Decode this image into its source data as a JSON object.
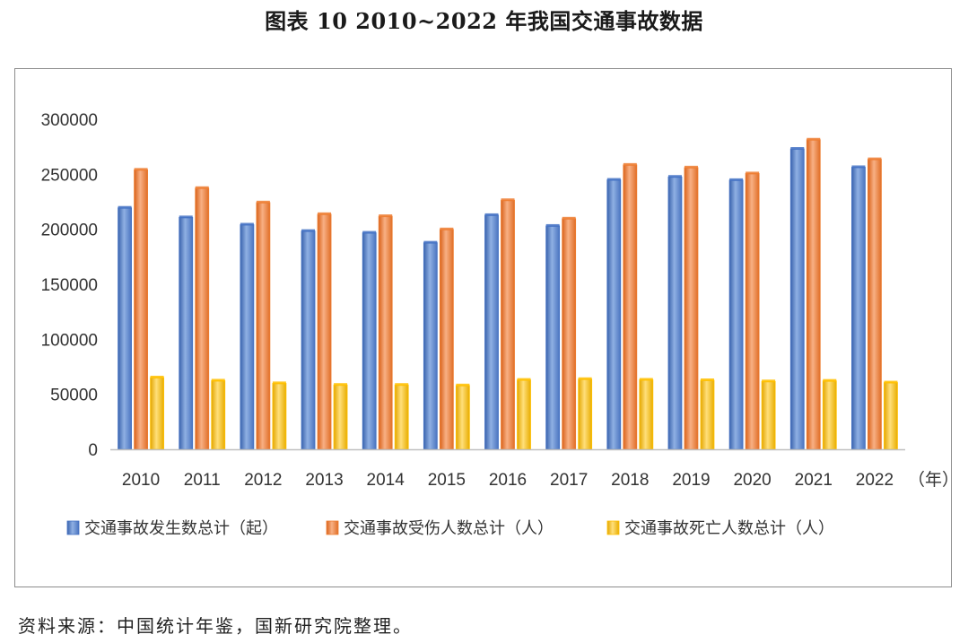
{
  "title": "图表 10  2010~2022 年我国交通事故数据",
  "source": "资料来源：中国统计年鉴，国新研究院整理。",
  "chart_data": {
    "type": "bar",
    "title": "",
    "xlabel": "（年）",
    "ylabel": "",
    "ylim": [
      0,
      300000
    ],
    "yticks": [
      0,
      50000,
      100000,
      150000,
      200000,
      250000,
      300000
    ],
    "grid": false,
    "legend_position": "bottom",
    "categories": [
      "2010",
      "2011",
      "2012",
      "2013",
      "2014",
      "2015",
      "2016",
      "2017",
      "2018",
      "2019",
      "2020",
      "2021",
      "2022"
    ],
    "series": [
      {
        "name": "交通事故发生数总计（起）",
        "color": "#4472C4",
        "values": [
          219521,
          210812,
          204196,
          198394,
          196812,
          187781,
          212846,
          203049,
          244937,
          247646,
          244674,
          273098,
          256409
        ]
      },
      {
        "name": "交通事故受伤人数总计（人）",
        "color": "#ED7D31",
        "values": [
          254075,
          237421,
          224327,
          213724,
          211882,
          199880,
          226430,
          209654,
          258532,
          256101,
          250723,
          281447,
          263621
        ]
      },
      {
        "name": "交通事故死亡人数总计（人）",
        "color": "#FFC000",
        "values": [
          65225,
          62387,
          59997,
          58539,
          58523,
          58022,
          63093,
          63772,
          63194,
          62763,
          61703,
          62218,
          60676
        ]
      }
    ]
  }
}
